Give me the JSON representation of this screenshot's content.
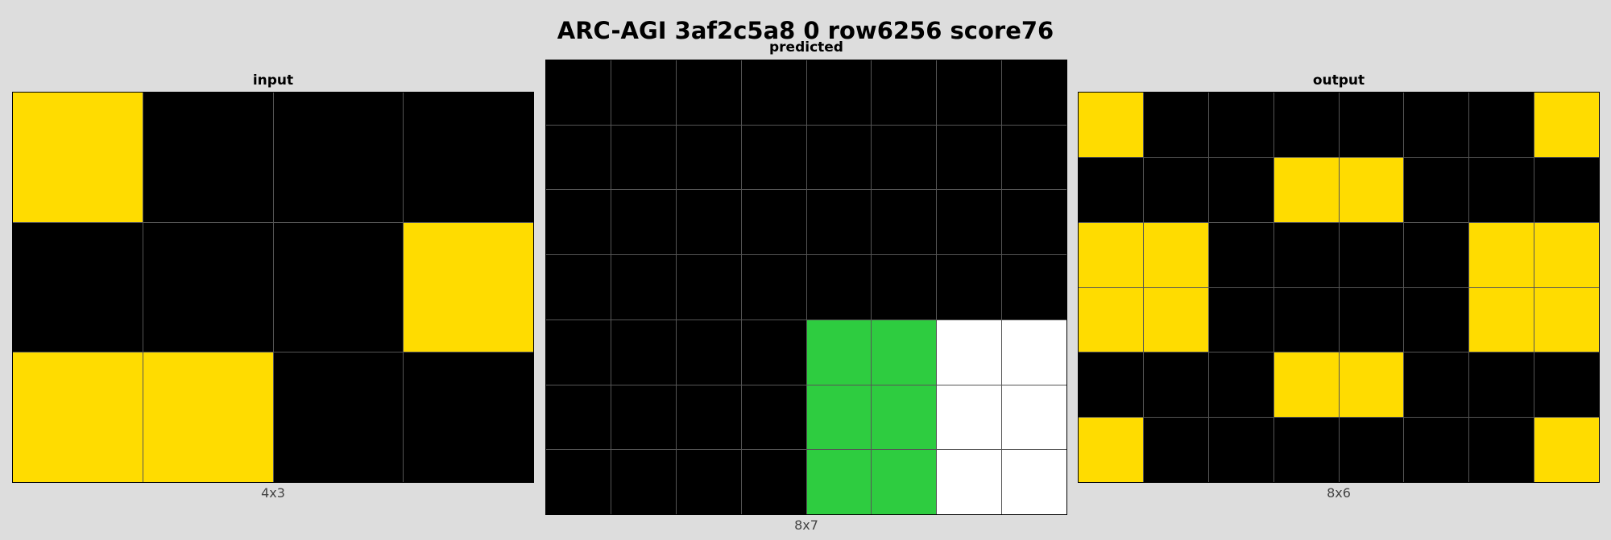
{
  "title": "ARC-AGI 3af2c5a8 0 row6256 score76",
  "palette": {
    "0": "#000000",
    "3": "#2ECC40",
    "4": "#FFDC00",
    "5": "#ffffff"
  },
  "panels": {
    "input": {
      "label": "input",
      "dims": "4x3",
      "cols": 4,
      "rows": 3,
      "cells": [
        [
          4,
          0,
          0,
          0
        ],
        [
          0,
          0,
          0,
          4
        ],
        [
          4,
          4,
          0,
          0
        ]
      ]
    },
    "predicted": {
      "label": "predicted",
      "dims": "8x7",
      "cols": 8,
      "rows": 7,
      "cells": [
        [
          0,
          0,
          0,
          0,
          0,
          0,
          0,
          0
        ],
        [
          0,
          0,
          0,
          0,
          0,
          0,
          0,
          0
        ],
        [
          0,
          0,
          0,
          0,
          0,
          0,
          0,
          0
        ],
        [
          0,
          0,
          0,
          0,
          0,
          0,
          0,
          0
        ],
        [
          0,
          0,
          0,
          0,
          3,
          3,
          5,
          5
        ],
        [
          0,
          0,
          0,
          0,
          3,
          3,
          5,
          5
        ],
        [
          0,
          0,
          0,
          0,
          3,
          3,
          5,
          5
        ]
      ]
    },
    "output": {
      "label": "output",
      "dims": "8x6",
      "cols": 8,
      "rows": 6,
      "cells": [
        [
          4,
          0,
          0,
          0,
          0,
          0,
          0,
          4
        ],
        [
          0,
          0,
          0,
          4,
          4,
          0,
          0,
          0
        ],
        [
          4,
          4,
          0,
          0,
          0,
          0,
          4,
          4
        ],
        [
          4,
          4,
          0,
          0,
          0,
          0,
          4,
          4
        ],
        [
          0,
          0,
          0,
          4,
          4,
          0,
          0,
          0
        ],
        [
          4,
          0,
          0,
          0,
          0,
          0,
          0,
          4
        ]
      ]
    }
  }
}
